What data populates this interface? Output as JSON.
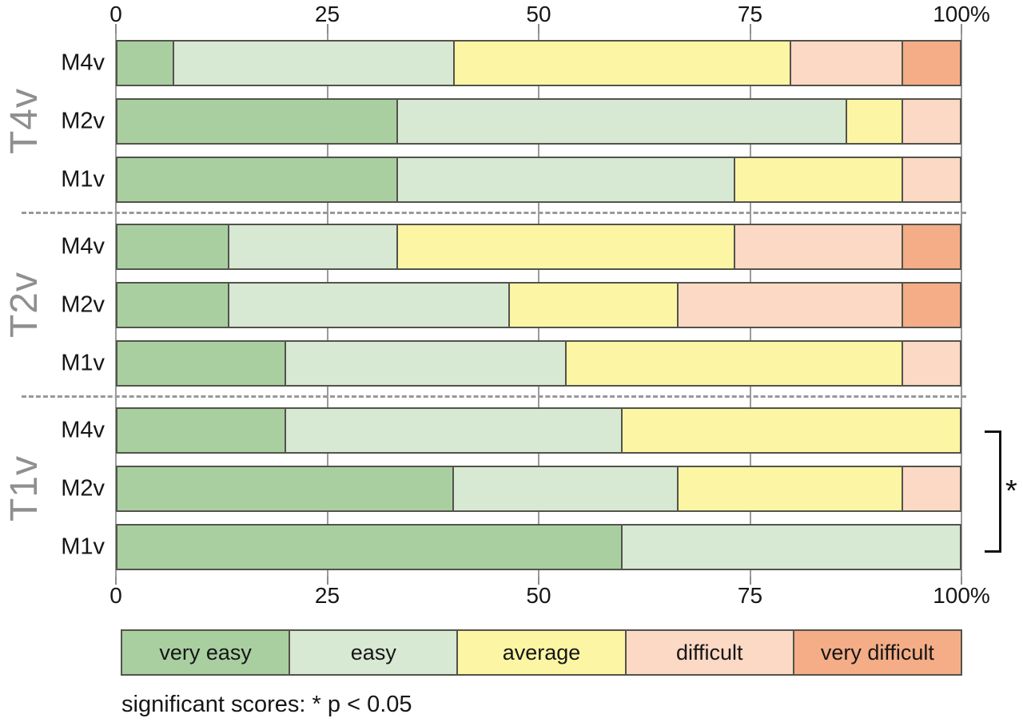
{
  "chart_data": {
    "type": "bar",
    "orientation": "horizontal",
    "stacked": true,
    "unit": "percent",
    "x_axis": {
      "range": [
        0,
        100
      ],
      "ticks": [
        0,
        25,
        50,
        75,
        100
      ],
      "tick_labels": [
        "0",
        "25",
        "50",
        "75",
        "100%"
      ],
      "shown_top_and_bottom": true
    },
    "grid": true,
    "legend_position": "bottom",
    "legend": [
      {
        "label": "very easy",
        "color": "#a9cfa1"
      },
      {
        "label": "easy",
        "color": "#d7e8d3"
      },
      {
        "label": "average",
        "color": "#fbf5a4"
      },
      {
        "label": "difficult",
        "color": "#fbd9c5"
      },
      {
        "label": "very difficult",
        "color": "#f4ad86"
      }
    ],
    "groups": [
      {
        "label": "T4v",
        "rows": [
          {
            "label": "M4v",
            "values": [
              6.7,
              33.3,
              40.0,
              13.3,
              6.7
            ]
          },
          {
            "label": "M2v",
            "values": [
              33.3,
              53.3,
              6.7,
              6.7,
              0
            ]
          },
          {
            "label": "M1v",
            "values": [
              33.3,
              40.0,
              20.0,
              6.7,
              0
            ]
          }
        ]
      },
      {
        "label": "T2v",
        "rows": [
          {
            "label": "M4v",
            "values": [
              13.3,
              20.0,
              40.0,
              20.0,
              6.7
            ]
          },
          {
            "label": "M2v",
            "values": [
              13.3,
              33.3,
              20.0,
              26.7,
              6.7
            ]
          },
          {
            "label": "M1v",
            "values": [
              20.0,
              33.3,
              40.0,
              6.7,
              0
            ]
          }
        ]
      },
      {
        "label": "T1v",
        "rows": [
          {
            "label": "M4v",
            "values": [
              20.0,
              40.0,
              40.0,
              0,
              0
            ]
          },
          {
            "label": "M2v",
            "values": [
              40.0,
              26.7,
              26.7,
              6.7,
              0
            ]
          },
          {
            "label": "M1v",
            "values": [
              60.0,
              40.0,
              0,
              0,
              0
            ]
          }
        ]
      }
    ],
    "annotation": {
      "bracket_group": "T1v",
      "symbol": "*"
    }
  },
  "footnote": "significant scores: * p < 0.05",
  "colors": {
    "bar_border": "#53534b",
    "gridline": "#9b9b9b",
    "group_label": "#8f8f8f",
    "separator": "#999999",
    "text": "#161616"
  }
}
